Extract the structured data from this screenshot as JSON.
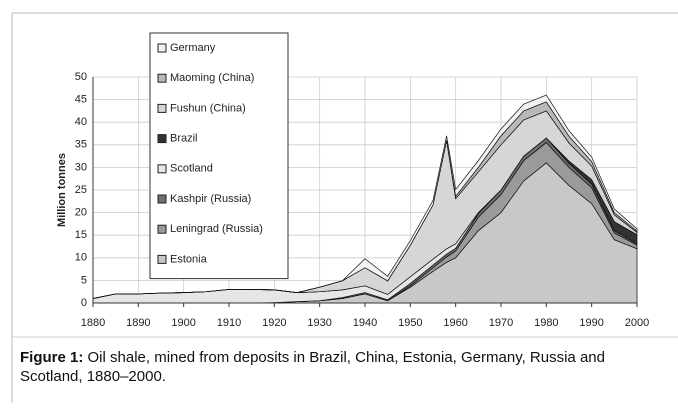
{
  "chart_data": {
    "type": "stacked_area",
    "y_label": "Million tonnes",
    "x": [
      1880,
      1885,
      1890,
      1895,
      1900,
      1905,
      1910,
      1915,
      1920,
      1925,
      1930,
      1935,
      1940,
      1945,
      1950,
      1955,
      1958,
      1960,
      1965,
      1970,
      1975,
      1980,
      1985,
      1990,
      1995,
      2000
    ],
    "series": [
      {
        "name": "Estonia",
        "color": "#c8c8c8",
        "values": [
          0,
          0,
          0,
          0,
          0,
          0,
          0,
          0,
          0.1,
          0.3,
          0.5,
          1,
          2,
          0.5,
          3.5,
          7,
          9,
          10,
          16,
          20,
          27,
          31,
          26,
          22,
          14,
          12
        ]
      },
      {
        "name": "Leningrad (Russia)",
        "color": "#9a9a9a",
        "values": [
          0,
          0,
          0,
          0,
          0,
          0,
          0,
          0,
          0,
          0,
          0,
          0,
          0,
          0,
          0.3,
          0.8,
          1.2,
          1.5,
          3,
          4,
          4.5,
          4.5,
          4,
          3.5,
          1.5,
          0.8
        ]
      },
      {
        "name": "Kashpir (Russia)",
        "color": "#6e6e6e",
        "values": [
          0,
          0,
          0,
          0,
          0,
          0,
          0,
          0,
          0,
          0,
          0,
          0.2,
          0.3,
          0.2,
          0.5,
          0.6,
          0.6,
          0.6,
          0.8,
          1,
          1,
          1,
          0.9,
          0.8,
          0.5,
          0.3
        ]
      },
      {
        "name": "Scotland",
        "color": "#e6e6e6",
        "values": [
          1,
          2,
          2,
          2.2,
          2.3,
          2.5,
          3,
          3,
          2.8,
          2,
          2,
          1.7,
          1.5,
          1.2,
          1.5,
          1.3,
          1.2,
          1,
          0.2,
          0,
          0,
          0,
          0,
          0,
          0,
          0
        ]
      },
      {
        "name": "Brazil",
        "color": "#333333",
        "values": [
          0,
          0,
          0,
          0,
          0,
          0,
          0,
          0,
          0,
          0,
          0,
          0,
          0,
          0,
          0,
          0,
          0,
          0,
          0,
          0,
          0,
          0,
          0.5,
          1,
          2,
          2
        ]
      },
      {
        "name": "Fushun (China)",
        "color": "#d6d6d6",
        "values": [
          0,
          0,
          0,
          0,
          0,
          0,
          0,
          0,
          0,
          0,
          1,
          2,
          4,
          3,
          7,
          12,
          24,
          10,
          9,
          10,
          8,
          6,
          4,
          3,
          1.5,
          0.5
        ]
      },
      {
        "name": "Maoming (China)",
        "color": "#b8b8b8",
        "values": [
          0,
          0,
          0,
          0,
          0,
          0,
          0,
          0,
          0,
          0,
          0,
          0,
          0,
          0,
          0,
          0,
          0,
          0.5,
          1,
          2,
          2,
          2,
          1.5,
          1,
          0.5,
          0.3
        ]
      },
      {
        "name": "Germany",
        "color": "#f2f2f2",
        "values": [
          0,
          0,
          0,
          0,
          0,
          0,
          0,
          0,
          0,
          0,
          0,
          0,
          2,
          1,
          1,
          1,
          1,
          1.5,
          1.5,
          1.5,
          1.5,
          1.5,
          1.2,
          1,
          0.8,
          0.5
        ]
      }
    ],
    "xlim": [
      1880,
      2000
    ],
    "xticks": [
      1880,
      1890,
      1900,
      1910,
      1920,
      1930,
      1940,
      1950,
      1960,
      1970,
      1980,
      1990,
      2000
    ],
    "ylim": [
      0,
      50
    ],
    "yticks": [
      0,
      5,
      10,
      15,
      20,
      25,
      30,
      35,
      40,
      45,
      50
    ],
    "grid": true,
    "legend": "upper left"
  },
  "caption": {
    "label": "Figure 1:",
    "text": "Oil shale, mined from deposits in Brazil, China, Estonia, Germany, Russia and Scotland, 1880–2000."
  }
}
